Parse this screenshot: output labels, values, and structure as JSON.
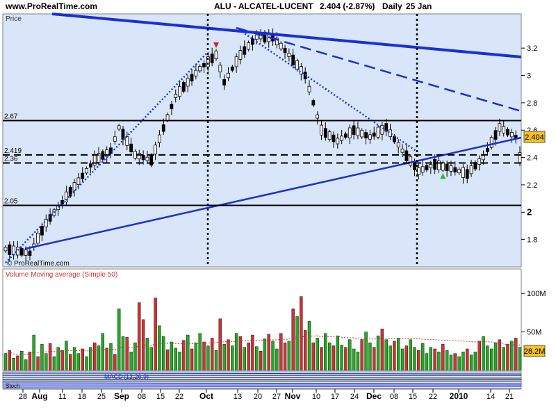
{
  "header": {
    "site": "www.ProRealTime.com",
    "instrument": "ALU - ALCATEL-LUCENT",
    "last": "2.404 (-2.87%)",
    "period": "Daily",
    "date": "25 Jan"
  },
  "colors": {
    "panel_bg": "#d9e6fa",
    "up": "#22aa22",
    "down": "#cc3333",
    "trend": "#1a2fd6",
    "price_tag": "#f7c11e"
  },
  "chart_data": [
    {
      "type": "candlestick",
      "label": "Price",
      "ylim": [
        1.6,
        3.45
      ],
      "yticks": [
        1.8,
        2,
        2.2,
        2.4,
        2.6,
        2.8,
        3,
        3.2
      ],
      "yticks_bold": [
        2
      ],
      "last_price": "2.404",
      "levels": [
        {
          "value": 2.67,
          "label": "2.67",
          "style": "solid"
        },
        {
          "value": 2.419,
          "label": "2.419",
          "style": "dashed"
        },
        {
          "value": 2.36,
          "label": "2.36",
          "style": "dashed"
        },
        {
          "value": 2.05,
          "label": "2.05",
          "style": "solid"
        }
      ],
      "watermark": "© ProRealTime.com",
      "markers": [
        {
          "type": "sell-arrow",
          "x_index": 52
        },
        {
          "type": "buy-arrow",
          "x_index": 108
        }
      ]
    },
    {
      "type": "bar",
      "label": "Volume Moving average (Simple 50)",
      "yticks": [
        "50M",
        "100M"
      ],
      "yticks_values": [
        50,
        100
      ],
      "ylim": [
        0,
        120
      ],
      "last_value": "28.2M",
      "values": [
        22,
        26,
        16,
        19,
        25,
        14,
        24,
        46,
        18,
        34,
        22,
        35,
        18,
        30,
        26,
        38,
        21,
        30,
        22,
        28,
        18,
        30,
        36,
        32,
        48,
        29,
        35,
        21,
        80,
        44,
        43,
        24,
        36,
        88,
        66,
        42,
        30,
        94,
        58,
        44,
        27,
        37,
        29,
        24,
        39,
        46,
        28,
        36,
        48,
        37,
        32,
        42,
        26,
        67,
        34,
        40,
        32,
        48,
        44,
        30,
        36,
        46,
        31,
        25,
        41,
        47,
        38,
        28,
        48,
        36,
        38,
        80,
        70,
        96,
        52,
        64,
        36,
        42,
        30,
        48,
        36,
        32,
        45,
        33,
        30,
        40,
        28,
        24,
        40,
        50,
        36,
        30,
        45,
        54,
        40,
        32,
        38,
        42,
        28,
        32,
        40,
        30,
        26,
        35,
        22,
        30,
        28,
        24,
        34,
        26,
        20,
        22,
        18,
        24,
        28,
        20,
        24,
        38,
        44,
        32,
        28,
        36,
        40,
        30,
        34,
        38,
        42,
        30
      ],
      "colors": [
        "u",
        "d",
        "u",
        "d",
        "u",
        "u",
        "d",
        "u",
        "d",
        "u",
        "u",
        "d",
        "u",
        "u",
        "d",
        "u",
        "d",
        "u",
        "u",
        "d",
        "u",
        "u",
        "d",
        "u",
        "u",
        "d",
        "u",
        "d",
        "u",
        "u",
        "d",
        "u",
        "u",
        "d",
        "d",
        "u",
        "u",
        "d",
        "u",
        "u",
        "d",
        "u",
        "u",
        "u",
        "d",
        "u",
        "d",
        "u",
        "u",
        "d",
        "u",
        "d",
        "u",
        "d",
        "u",
        "d",
        "u",
        "u",
        "d",
        "u",
        "d",
        "d",
        "u",
        "d",
        "u",
        "d",
        "u",
        "u",
        "d",
        "d",
        "u",
        "d",
        "u",
        "d",
        "d",
        "u",
        "d",
        "u",
        "d",
        "u",
        "u",
        "d",
        "u",
        "u",
        "d",
        "u",
        "u",
        "u",
        "d",
        "u",
        "u",
        "d",
        "u",
        "d",
        "u",
        "u",
        "d",
        "u",
        "u",
        "d",
        "u",
        "u",
        "d",
        "u",
        "u",
        "u",
        "d",
        "u",
        "d",
        "u",
        "u",
        "d",
        "u",
        "u",
        "d",
        "u",
        "u",
        "d",
        "u",
        "u",
        "u",
        "u",
        "d",
        "u",
        "d",
        "u",
        "d",
        "u"
      ]
    },
    {
      "type": "indicator",
      "label": "MACD",
      "params": "(12,26,9)"
    },
    {
      "type": "indicator",
      "label": "Stoch"
    }
  ],
  "x_axis": {
    "ticks": [
      {
        "label": "28",
        "bold": false
      },
      {
        "label": "Aug",
        "bold": true
      },
      {
        "label": "11",
        "bold": false
      },
      {
        "label": "18",
        "bold": false
      },
      {
        "label": "25",
        "bold": false
      },
      {
        "label": "Sep",
        "bold": true
      },
      {
        "label": "08",
        "bold": false
      },
      {
        "label": "15",
        "bold": false
      },
      {
        "label": "22",
        "bold": false
      },
      {
        "label": "Oct",
        "bold": true
      },
      {
        "label": "13",
        "bold": false
      },
      {
        "label": "20",
        "bold": false
      },
      {
        "label": "27",
        "bold": false
      },
      {
        "label": "Nov",
        "bold": true
      },
      {
        "label": "10",
        "bold": false
      },
      {
        "label": "17",
        "bold": false
      },
      {
        "label": "24",
        "bold": false
      },
      {
        "label": "Dec",
        "bold": true
      },
      {
        "label": "08",
        "bold": false
      },
      {
        "label": "15",
        "bold": false
      },
      {
        "label": "22",
        "bold": false
      },
      {
        "label": "2010",
        "bold": true
      },
      {
        "label": "14",
        "bold": false
      },
      {
        "label": "21",
        "bold": false
      }
    ]
  }
}
